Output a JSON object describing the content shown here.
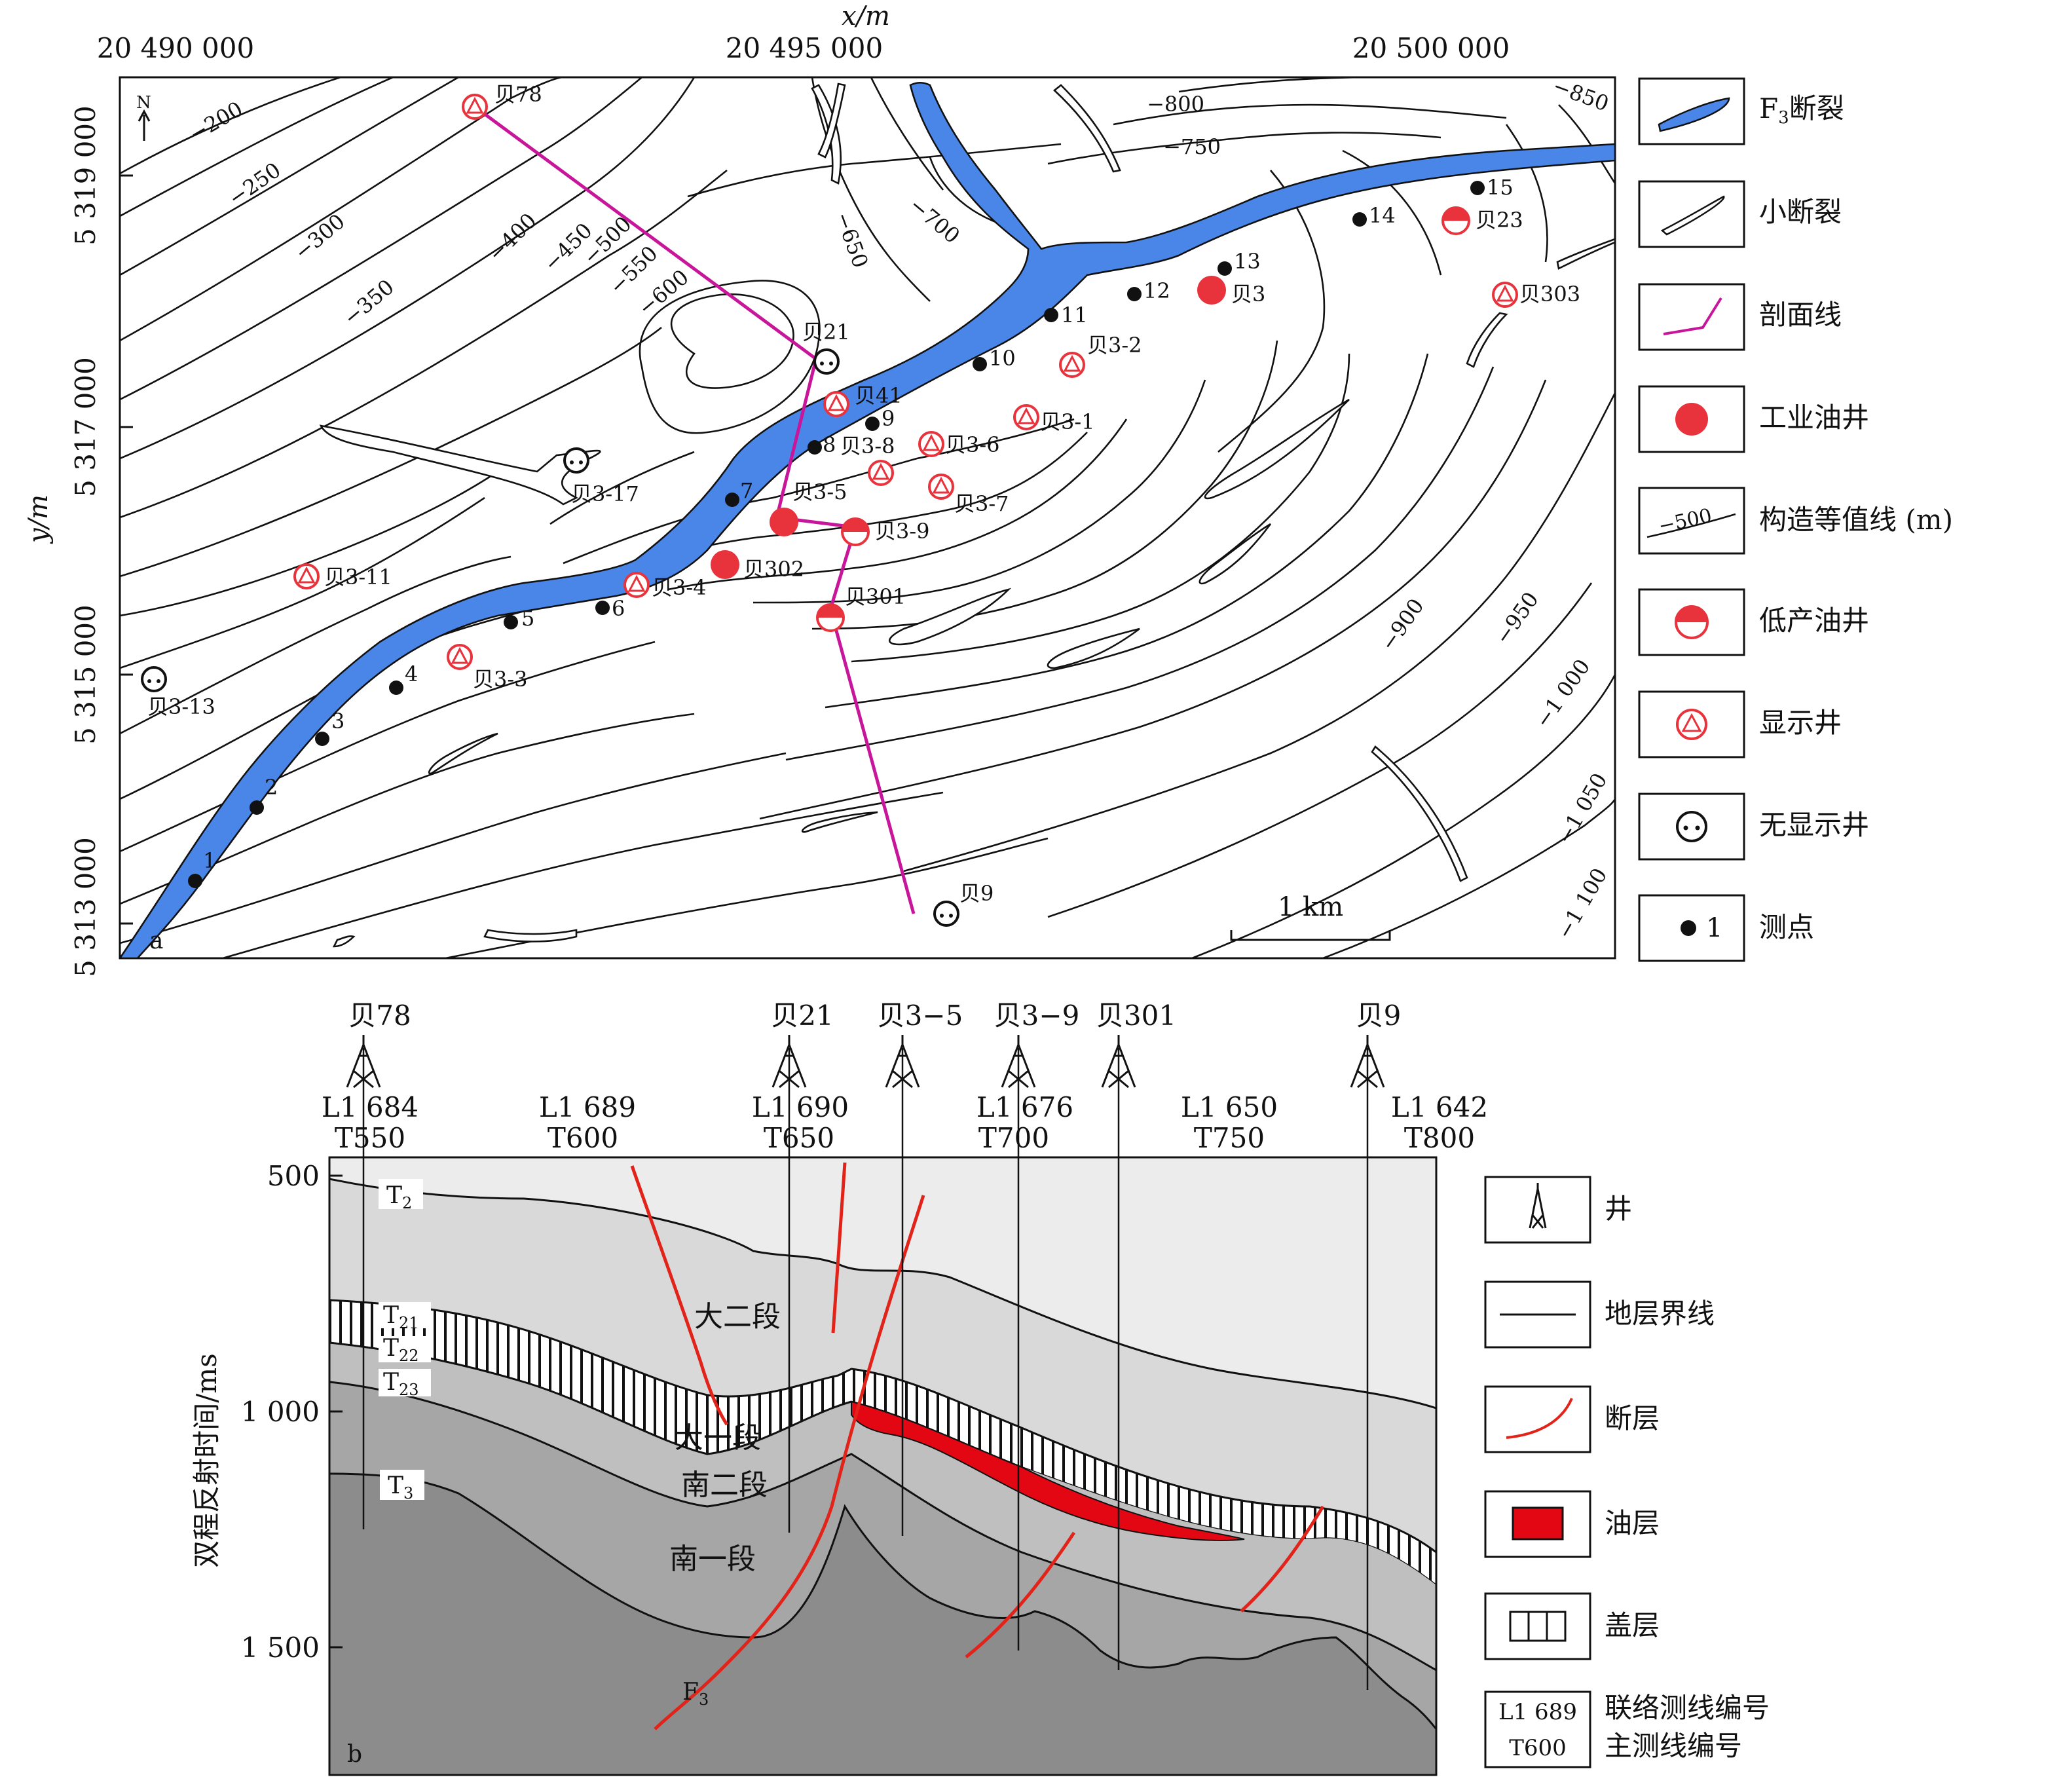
{
  "figure": {
    "map": {
      "x_axis_title": "x/m",
      "y_axis_title": "y/m",
      "x_ticks": [
        "20 490 000",
        "20 495 000",
        "20 500 000"
      ],
      "y_ticks": [
        "5 319 000",
        "5 317 000",
        "5 315 000",
        "5 313 000"
      ],
      "panel_label": "a",
      "north_label": "N",
      "scale_label": "1 km",
      "contour_labels": [
        "−200",
        "−250",
        "−300",
        "−350",
        "−400",
        "−450",
        "−500",
        "−550",
        "−600",
        "−650",
        "−700",
        "−750",
        "−800",
        "−850",
        "−900",
        "−950",
        "−1 000",
        "−1 050",
        "−1 100"
      ],
      "survey_points": [
        "1",
        "2",
        "3",
        "4",
        "5",
        "6",
        "7",
        "8",
        "9",
        "10",
        "11",
        "12",
        "13",
        "14",
        "15"
      ],
      "wells": [
        {
          "name": "贝78",
          "type": "show"
        },
        {
          "name": "贝21",
          "type": "dry"
        },
        {
          "name": "贝41",
          "type": "show"
        },
        {
          "name": "贝3-8",
          "type": "show"
        },
        {
          "name": "贝3-5",
          "type": "industrial"
        },
        {
          "name": "贝3-9",
          "type": "low"
        },
        {
          "name": "贝302",
          "type": "industrial"
        },
        {
          "name": "贝301",
          "type": "low"
        },
        {
          "name": "贝3-4",
          "type": "show"
        },
        {
          "name": "贝3-3",
          "type": "show"
        },
        {
          "name": "贝3-11",
          "type": "show"
        },
        {
          "name": "贝3-13",
          "type": "dry"
        },
        {
          "name": "贝3-17",
          "type": "dry"
        },
        {
          "name": "贝3-6",
          "type": "show"
        },
        {
          "name": "贝3-7",
          "type": "show"
        },
        {
          "name": "贝3-1",
          "type": "show"
        },
        {
          "name": "贝3-2",
          "type": "show"
        },
        {
          "name": "贝3",
          "type": "industrial"
        },
        {
          "name": "贝23",
          "type": "low"
        },
        {
          "name": "贝303",
          "type": "show"
        },
        {
          "name": "贝9",
          "type": "dry"
        }
      ],
      "legend": {
        "f3_fault_prefix": "F",
        "f3_fault_sub": "3",
        "f3_fault_suffix": "断裂",
        "small_fault": "小断裂",
        "profile_line": "剖面线",
        "industrial_well": "工业油井",
        "contour": "构造等值线 (m)",
        "contour_sample": "−500",
        "low_well": "低产油井",
        "show_well": "显示井",
        "dry_well": "无显示井",
        "survey_point": "测点",
        "survey_point_sample": "1"
      }
    },
    "section": {
      "panel_label": "b",
      "y_axis_title": "双程反射时间/ms",
      "y_ticks": [
        "500",
        "1 000",
        "1 500"
      ],
      "wells": [
        "贝78",
        "贝21",
        "贝3−5",
        "贝3−9",
        "贝301",
        "贝9"
      ],
      "crosslines": [
        "L1 684",
        "L1 689",
        "L1 690",
        "L1 676",
        "L1 650",
        "L1 642"
      ],
      "mainlines": [
        "T550",
        "T600",
        "T650",
        "T700",
        "T750",
        "T800"
      ],
      "horizons": [
        {
          "main": "T",
          "sub": "2"
        },
        {
          "main": "T",
          "sub": "21"
        },
        {
          "main": "T",
          "sub": "22"
        },
        {
          "main": "T",
          "sub": "23"
        },
        {
          "main": "T",
          "sub": "3"
        }
      ],
      "units": [
        "大二段",
        "大一段",
        "南二段",
        "南一段"
      ],
      "fault_label_main": "F",
      "fault_label_sub": "3",
      "legend": {
        "well": "井",
        "boundary": "地层界线",
        "fault": "断层",
        "oil_layer": "油层",
        "caprock": "盖层",
        "line_sample_top": "L1 689",
        "line_sample_bottom": "T600",
        "line_text_top": "联络测线编号",
        "line_text_bottom": "主测线编号"
      }
    },
    "colors": {
      "fault_fill": "#4a86e8",
      "profile": "#c8169b",
      "well_red": "#e8323c",
      "oil": "#e30613",
      "fault_line": "#e2231a"
    }
  }
}
